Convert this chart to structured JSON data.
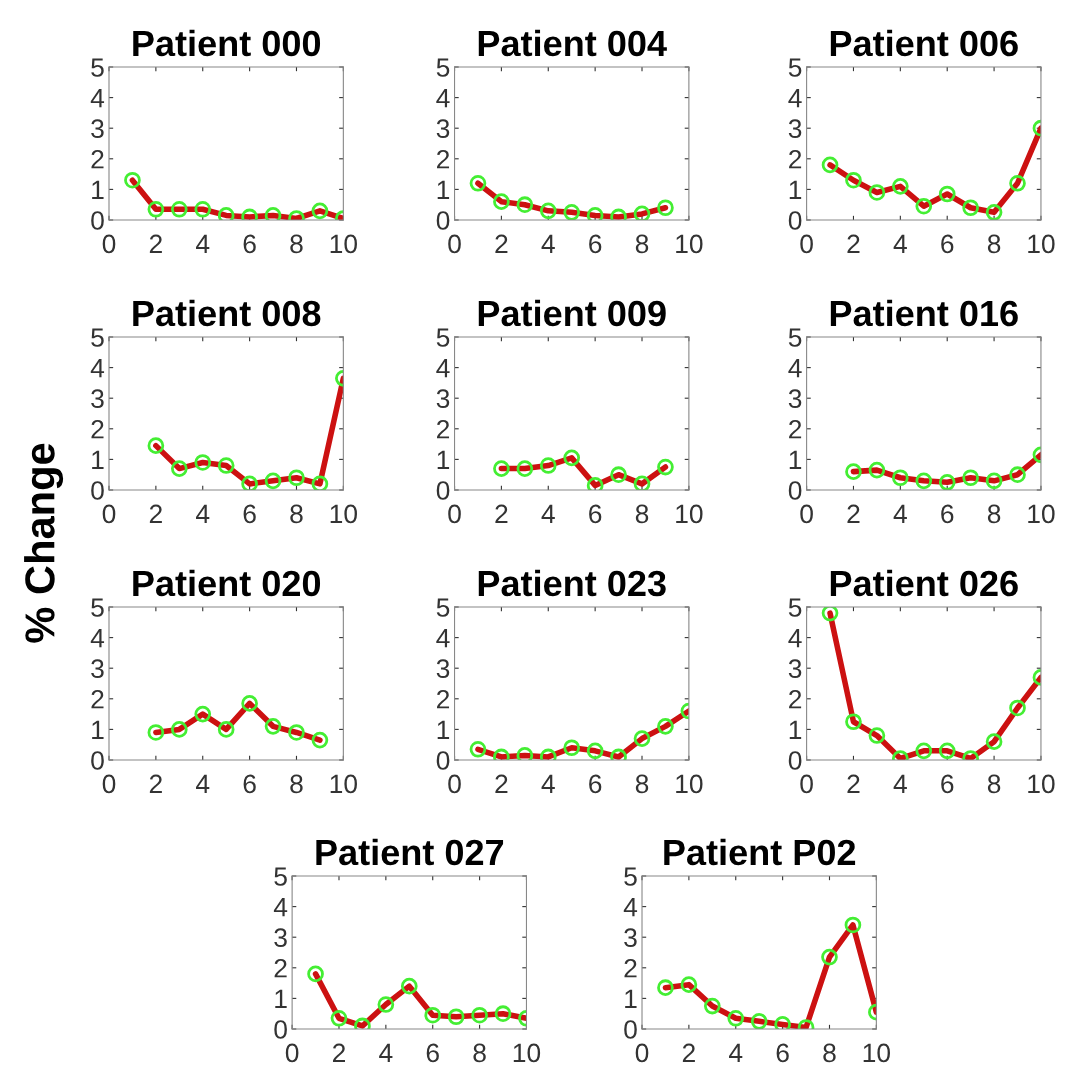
{
  "chart_data": [
    {
      "type": "line",
      "title": "Patient 000",
      "x": [
        1,
        2,
        3,
        4,
        5,
        6,
        7,
        8,
        9,
        10
      ],
      "series": [
        {
          "color": "#cc1111",
          "values": [
            1.3,
            0.35,
            0.35,
            0.35,
            0.15,
            0.1,
            0.15,
            0.05,
            0.3,
            0.05
          ]
        }
      ],
      "xlim": [
        0,
        10
      ],
      "ylim": [
        0,
        5
      ],
      "xticks": [
        0,
        2,
        4,
        6,
        8,
        10
      ],
      "yticks": [
        0,
        1,
        2,
        3,
        4,
        5
      ],
      "marker": "circle",
      "line_style": "solid"
    },
    {
      "type": "line",
      "title": "Patient 004",
      "series": [
        {
          "color": "#cc1111",
          "x": [
            1,
            2,
            3,
            4,
            5,
            6,
            7,
            8,
            9
          ],
          "values": [
            1.2,
            0.6,
            0.5,
            0.3,
            0.25,
            0.15,
            0.1,
            0.2,
            0.4
          ]
        }
      ],
      "xlim": [
        0,
        10
      ],
      "ylim": [
        0,
        5
      ],
      "xticks": [
        0,
        2,
        4,
        6,
        8,
        10
      ],
      "yticks": [
        0,
        1,
        2,
        3,
        4,
        5
      ],
      "marker": "circle",
      "line_style": "solid"
    },
    {
      "type": "line",
      "title": "Patient 006",
      "x": [
        1,
        2,
        3,
        4,
        5,
        6,
        7,
        8,
        9,
        10
      ],
      "series": [
        {
          "color": "#cc1111",
          "values": [
            1.8,
            1.3,
            0.9,
            1.1,
            0.45,
            0.85,
            0.4,
            0.25,
            1.2,
            3.0
          ]
        }
      ],
      "xlim": [
        0,
        10
      ],
      "ylim": [
        0,
        5
      ],
      "xticks": [
        0,
        2,
        4,
        6,
        8,
        10
      ],
      "yticks": [
        0,
        1,
        2,
        3,
        4,
        5
      ],
      "marker": "circle",
      "line_style": "solid"
    },
    {
      "type": "line",
      "title": "Patient 008",
      "ylabel": "% Change",
      "series": [
        {
          "color": "#cc1111",
          "x": [
            2,
            3,
            4,
            5,
            6,
            7,
            8,
            9,
            10
          ],
          "values": [
            1.45,
            0.7,
            0.9,
            0.8,
            0.2,
            0.3,
            0.4,
            0.2,
            3.65
          ]
        }
      ],
      "xlim": [
        0,
        10
      ],
      "ylim": [
        0,
        5
      ],
      "xticks": [
        0,
        2,
        4,
        6,
        8,
        10
      ],
      "yticks": [
        0,
        1,
        2,
        3,
        4,
        5
      ],
      "marker": "circle",
      "line_style": "solid"
    },
    {
      "type": "line",
      "title": "Patient 009",
      "series": [
        {
          "color": "#cc1111",
          "x": [
            2,
            3,
            4,
            5,
            6,
            7,
            8,
            9
          ],
          "values": [
            0.7,
            0.7,
            0.8,
            1.05,
            0.15,
            0.5,
            0.2,
            0.75
          ]
        }
      ],
      "xlim": [
        0,
        10
      ],
      "ylim": [
        0,
        5
      ],
      "xticks": [
        0,
        2,
        4,
        6,
        8,
        10
      ],
      "yticks": [
        0,
        1,
        2,
        3,
        4,
        5
      ],
      "marker": "circle",
      "line_style": "solid"
    },
    {
      "type": "line",
      "title": "Patient 016",
      "series": [
        {
          "color": "#cc1111",
          "x": [
            2,
            3,
            4,
            5,
            6,
            7,
            8,
            9,
            10
          ],
          "values": [
            0.6,
            0.65,
            0.4,
            0.3,
            0.25,
            0.4,
            0.3,
            0.5,
            1.15
          ]
        }
      ],
      "xlim": [
        0,
        10
      ],
      "ylim": [
        0,
        5
      ],
      "xticks": [
        0,
        2,
        4,
        6,
        8,
        10
      ],
      "yticks": [
        0,
        1,
        2,
        3,
        4,
        5
      ],
      "marker": "circle",
      "line_style": "solid"
    },
    {
      "type": "line",
      "title": "Patient 020",
      "series": [
        {
          "color": "#cc1111",
          "x": [
            2,
            3,
            4,
            5,
            6,
            7,
            8,
            9
          ],
          "values": [
            0.9,
            1.0,
            1.5,
            1.0,
            1.85,
            1.1,
            0.9,
            0.65
          ]
        }
      ],
      "xlim": [
        0,
        10
      ],
      "ylim": [
        0,
        5
      ],
      "xticks": [
        0,
        2,
        4,
        6,
        8,
        10
      ],
      "yticks": [
        0,
        1,
        2,
        3,
        4,
        5
      ],
      "marker": "circle",
      "line_style": "solid"
    },
    {
      "type": "line",
      "title": "Patient 023",
      "x": [
        1,
        2,
        3,
        4,
        5,
        6,
        7,
        8,
        9,
        10
      ],
      "series": [
        {
          "color": "#cc1111",
          "values": [
            0.35,
            0.1,
            0.15,
            0.1,
            0.4,
            0.3,
            0.1,
            0.7,
            1.1,
            1.6
          ]
        }
      ],
      "xlim": [
        0,
        10
      ],
      "ylim": [
        0,
        5
      ],
      "xticks": [
        0,
        2,
        4,
        6,
        8,
        10
      ],
      "yticks": [
        0,
        1,
        2,
        3,
        4,
        5
      ],
      "marker": "circle",
      "line_style": "solid"
    },
    {
      "type": "line",
      "title": "Patient 026",
      "x": [
        1,
        2,
        3,
        4,
        5,
        6,
        7,
        8,
        9,
        10
      ],
      "series": [
        {
          "color": "#cc1111",
          "values": [
            4.8,
            1.25,
            0.8,
            0.05,
            0.3,
            0.3,
            0.05,
            0.6,
            1.7,
            2.7
          ]
        }
      ],
      "xlim": [
        0,
        10
      ],
      "ylim": [
        0,
        5
      ],
      "xticks": [
        0,
        2,
        4,
        6,
        8,
        10
      ],
      "yticks": [
        0,
        1,
        2,
        3,
        4,
        5
      ],
      "marker": "circle",
      "line_style": "solid"
    },
    {
      "type": "line",
      "title": "Patient 027",
      "x": [
        1,
        2,
        3,
        4,
        5,
        6,
        7,
        8,
        9,
        10
      ],
      "series": [
        {
          "color": "#cc1111",
          "values": [
            1.8,
            0.35,
            0.1,
            0.8,
            1.4,
            0.45,
            0.4,
            0.45,
            0.5,
            0.35
          ]
        }
      ],
      "xlim": [
        0,
        10
      ],
      "ylim": [
        0,
        5
      ],
      "xticks": [
        0,
        2,
        4,
        6,
        8,
        10
      ],
      "yticks": [
        0,
        1,
        2,
        3,
        4,
        5
      ],
      "marker": "circle",
      "line_style": "solid"
    },
    {
      "type": "line",
      "title": "Patient P02",
      "x": [
        1,
        2,
        3,
        4,
        5,
        6,
        7,
        8,
        9,
        10
      ],
      "series": [
        {
          "color": "#cc1111",
          "values": [
            1.35,
            1.45,
            0.75,
            0.35,
            0.25,
            0.15,
            0.05,
            2.35,
            3.4,
            0.55
          ]
        }
      ],
      "xlim": [
        0,
        10
      ],
      "ylim": [
        0,
        5
      ],
      "xticks": [
        0,
        2,
        4,
        6,
        8,
        10
      ],
      "yticks": [
        0,
        1,
        2,
        3,
        4,
        5
      ],
      "marker": "circle",
      "line_style": "solid"
    }
  ]
}
